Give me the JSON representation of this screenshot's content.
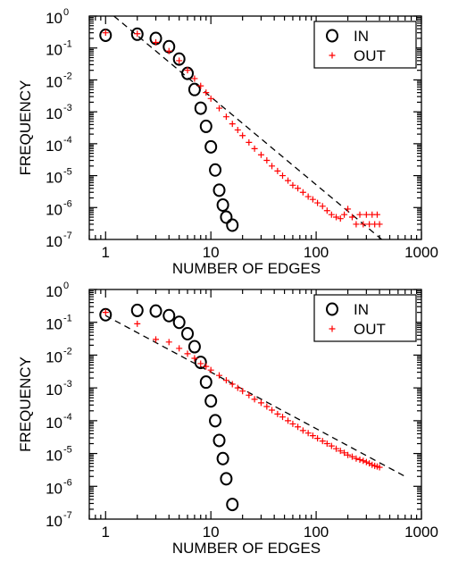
{
  "chart_data": [
    {
      "type": "scatter",
      "xlabel": "NUMBER OF EDGES",
      "ylabel": "FREQUENCY",
      "xscale": "log",
      "yscale": "log",
      "xlim": [
        0.7,
        1000
      ],
      "ylim": [
        1e-07,
        1
      ],
      "x_tick_labels": [
        "1",
        "10",
        "100",
        "1000"
      ],
      "y_tick_labels": [
        {
          "base": "10",
          "exp": "0"
        },
        {
          "base": "10",
          "exp": "-1"
        },
        {
          "base": "10",
          "exp": "-2"
        },
        {
          "base": "10",
          "exp": "-3"
        },
        {
          "base": "10",
          "exp": "-4"
        },
        {
          "base": "10",
          "exp": "-5"
        },
        {
          "base": "10",
          "exp": "-6"
        },
        {
          "base": "10",
          "exp": "-7"
        }
      ],
      "legend": {
        "position": "top-right",
        "entries": [
          "IN",
          "OUT"
        ]
      },
      "fit_line": {
        "style": "dashed",
        "color": "#000000",
        "x": [
          1.2,
          420
        ],
        "y": [
          1.0,
          1e-07
        ]
      },
      "series": [
        {
          "name": "IN",
          "marker": "circle",
          "color": "#000000",
          "x": [
            1,
            2,
            3,
            4,
            5,
            6,
            7,
            8,
            9,
            10,
            11,
            12,
            13,
            14,
            16
          ],
          "y": [
            0.25,
            0.27,
            0.2,
            0.11,
            0.045,
            0.016,
            0.005,
            0.0013,
            0.00035,
            8e-05,
            1.5e-05,
            3.5e-06,
            1.2e-06,
            5e-07,
            2.8e-07
          ]
        },
        {
          "name": "OUT",
          "marker": "plus",
          "color": "#ff0000",
          "x": [
            1,
            2,
            3,
            4,
            5,
            6,
            7,
            8,
            9,
            10,
            12,
            14,
            16,
            18,
            20,
            23,
            26,
            30,
            34,
            38,
            43,
            48,
            54,
            60,
            67,
            75,
            84,
            93,
            103,
            115,
            127,
            140,
            155,
            170,
            185,
            200,
            220,
            240,
            260,
            280,
            300,
            320,
            340,
            360,
            380,
            400
          ],
          "y": [
            0.3,
            0.28,
            0.15,
            0.08,
            0.04,
            0.02,
            0.011,
            0.0065,
            0.004,
            0.0026,
            0.0013,
            0.0007,
            0.00042,
            0.00027,
            0.00018,
            0.00011,
            7e-05,
            4.5e-05,
            3e-05,
            2e-05,
            1.4e-05,
            1e-05,
            7e-06,
            5e-06,
            4e-06,
            3e-06,
            2.2e-06,
            1.8e-06,
            1.4e-06,
            1.1e-06,
            8e-07,
            6e-07,
            5e-07,
            4.5e-07,
            6e-07,
            9e-07,
            5e-07,
            3e-07,
            6e-07,
            3e-07,
            6e-07,
            3e-07,
            6e-07,
            3e-07,
            6e-07,
            3e-07
          ]
        }
      ]
    },
    {
      "type": "scatter",
      "xlabel": "NUMBER OF EDGES",
      "ylabel": "FREQUENCY",
      "xscale": "log",
      "yscale": "log",
      "xlim": [
        0.7,
        1000
      ],
      "ylim": [
        1e-07,
        1
      ],
      "x_tick_labels": [
        "1",
        "10",
        "100",
        "1000"
      ],
      "y_tick_labels": [
        {
          "base": "10",
          "exp": "0"
        },
        {
          "base": "10",
          "exp": "-1"
        },
        {
          "base": "10",
          "exp": "-2"
        },
        {
          "base": "10",
          "exp": "-3"
        },
        {
          "base": "10",
          "exp": "-4"
        },
        {
          "base": "10",
          "exp": "-5"
        },
        {
          "base": "10",
          "exp": "-6"
        },
        {
          "base": "10",
          "exp": "-7"
        }
      ],
      "legend": {
        "position": "top-right",
        "entries": [
          "IN",
          "OUT"
        ]
      },
      "fit_line": {
        "style": "dashed",
        "color": "#000000",
        "x": [
          1,
          700
        ],
        "y": [
          0.16,
          2e-06
        ]
      },
      "series": [
        {
          "name": "IN",
          "marker": "circle",
          "color": "#000000",
          "x": [
            1,
            2,
            3,
            4,
            5,
            6,
            7,
            8,
            9,
            10,
            11,
            12,
            13,
            14,
            16
          ],
          "y": [
            0.17,
            0.23,
            0.22,
            0.16,
            0.1,
            0.045,
            0.018,
            0.006,
            0.0015,
            0.0004,
            0.0001,
            2.5e-05,
            7e-06,
            1.7e-06,
            2.8e-07
          ]
        },
        {
          "name": "OUT",
          "marker": "plus",
          "color": "#ff0000",
          "x": [
            1,
            2,
            3,
            4,
            5,
            6,
            7,
            8,
            9,
            10,
            12,
            14,
            16,
            18,
            20,
            23,
            26,
            30,
            34,
            38,
            43,
            48,
            54,
            60,
            67,
            75,
            84,
            93,
            103,
            115,
            127,
            140,
            155,
            170,
            185,
            200,
            220,
            240,
            260,
            280,
            300,
            320,
            340,
            360,
            380,
            400
          ],
          "y": [
            0.2,
            0.09,
            0.03,
            0.025,
            0.016,
            0.011,
            0.008,
            0.0055,
            0.0045,
            0.0035,
            0.0024,
            0.0017,
            0.0013,
            0.001,
            0.0008,
            0.0006,
            0.00045,
            0.00035,
            0.00027,
            0.00021,
            0.00016,
            0.00013,
            0.0001,
            8e-05,
            6.5e-05,
            5e-05,
            4.2e-05,
            3.5e-05,
            2.9e-05,
            2.4e-05,
            2e-05,
            1.7e-05,
            1.4e-05,
            1.2e-05,
            1.05e-05,
            9e-06,
            8e-06,
            7e-06,
            6.5e-06,
            6e-06,
            5.5e-06,
            5e-06,
            4.5e-06,
            4.2e-06,
            4e-06,
            3.8e-06
          ]
        }
      ]
    }
  ]
}
